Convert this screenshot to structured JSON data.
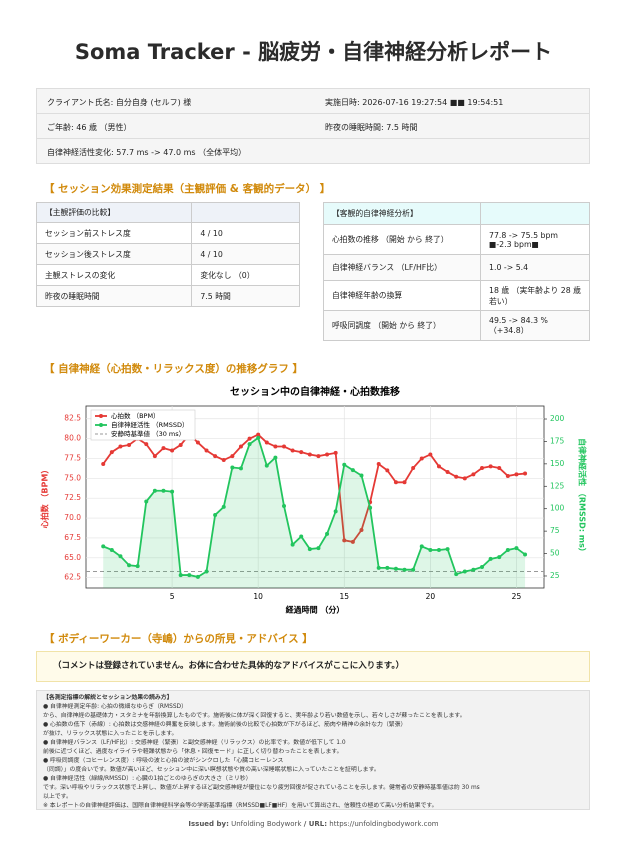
{
  "header": {
    "title": "Soma Tracker - 脳疲労・自律神経分析レポート"
  },
  "client_info": {
    "rows": [
      [
        "クライアント氏名: 自分自身 (セルフ) 様",
        "実施日時: 2026-07-16 19:27:54 ■■ 19:54:51"
      ],
      [
        "ご年齢: 46 歳 （男性）",
        "昨夜の睡眠時間: 7.5 時間"
      ],
      [
        "自律神経活性変化: 57.7 ms -> 47.0 ms （全体平均）"
      ]
    ]
  },
  "section1": {
    "title": "【 セッション効果測定結果（主観評価 & 客観的データ） 】",
    "subjective_table": {
      "header": "【主観評価の比較】",
      "rows": [
        [
          "セッション前ストレス度",
          "4 / 10"
        ],
        [
          "セッション後ストレス度",
          "4 / 10"
        ],
        [
          "主観ストレスの変化",
          "変化なし （0）"
        ],
        [
          "昨夜の睡眠時間",
          "7.5 時間"
        ]
      ]
    },
    "objective_table": {
      "header": "【客観的自律神経分析】",
      "rows": [
        [
          "心拍数の推移 （開始 から 終了）",
          "77.8 -> 75.5 bpm ■-2.3 bpm■"
        ],
        [
          "自律神経バランス （LF/HF比）",
          "1.0 -> 5.4"
        ],
        [
          "自律神経年齢の換算",
          "18 歳 （実年齢より 28 歳若い）"
        ],
        [
          "呼吸同調度 （開始 から 終了）",
          "49.5 -> 84.3 % （+34.8）"
        ]
      ]
    }
  },
  "section2": {
    "title": "【 自律神経（心拍数・リラックス度）の推移グラフ 】"
  },
  "chart_data": {
    "type": "line",
    "title": "セッション中の自律神経・心拍数推移",
    "xlabel": "経過時間 （分）",
    "ylabel": "心拍数 （BPM）",
    "y2label": "自律神経活性 （RMSSD: ms）",
    "x": [
      1,
      1.5,
      2,
      2.5,
      3,
      3.5,
      4,
      4.5,
      5,
      5.5,
      6,
      6.5,
      7,
      7.5,
      8,
      8.5,
      9,
      9.5,
      10,
      10.5,
      11,
      11.5,
      12,
      12.5,
      13,
      13.5,
      14,
      14.5,
      15,
      15.5,
      16,
      16.5,
      17,
      17.5,
      18,
      18.5,
      19,
      19.5,
      20,
      20.5,
      21,
      21.5,
      22,
      22.5,
      23,
      23.5,
      24,
      24.5,
      25,
      25.5
    ],
    "xlim": [
      0,
      26.6
    ],
    "xticks": [
      5,
      10,
      15,
      20,
      25
    ],
    "ylim": [
      61.2,
      84.1
    ],
    "yticks": [
      62.5,
      {
        "value": 65,
        "label": "65.0"
      },
      67.5,
      {
        "value": 70,
        "label": "70.0"
      },
      72.5,
      {
        "value": 75,
        "label": "75.0"
      },
      77.5,
      {
        "value": 80,
        "label": "80.0"
      },
      82.5
    ],
    "y2lim": [
      11.6,
      214.5
    ],
    "y2ticks": [
      25,
      50,
      75,
      100,
      125,
      150,
      175,
      200
    ],
    "grid": true,
    "legend": "upper left",
    "series": [
      {
        "name": "心拍数 （BPM）",
        "color": "#e53935",
        "values": [
          76.8,
          78.3,
          79,
          79.2,
          80,
          79.3,
          77.8,
          78.8,
          78.5,
          79.2,
          80.5,
          79.5,
          78.5,
          77.8,
          77.3,
          77.8,
          79,
          80,
          80.5,
          79.5,
          79,
          79,
          78.5,
          78.3,
          78,
          77.8,
          78,
          78.2,
          67.2,
          67,
          68.5,
          72,
          76.8,
          76,
          74.5,
          74.5,
          76.3,
          77.5,
          78,
          76.5,
          75.8,
          75.2,
          75,
          75.5,
          76.3,
          76.5,
          76.3,
          75.3,
          75.5,
          75.6
        ]
      },
      {
        "name": "自律神経活性 （RMSSD）",
        "color": "#22c55e",
        "axis": "y2",
        "fill": true,
        "values": [
          58,
          54,
          47,
          37,
          36,
          108,
          120,
          120,
          119,
          26,
          26,
          24,
          30,
          93,
          102,
          146,
          145,
          172,
          179,
          148,
          157,
          103,
          60,
          69,
          55,
          56,
          72,
          97,
          149,
          143,
          137,
          101,
          34,
          34,
          33,
          32,
          32,
          58,
          54,
          54,
          55,
          27,
          30,
          32,
          35,
          44,
          46,
          54,
          56,
          49
        ]
      }
    ],
    "reference_line": {
      "name": "安静時基準値 （30 ms）",
      "value": 30,
      "axis": "y2",
      "color": "#999999"
    }
  },
  "section3": {
    "title": "【 ボディーワーカー（寺嶋）からの所見・アドバイス 】",
    "comment": "（コメントは登録されていません。お体に合わせた具体的なアドバイスがここに入ります。）"
  },
  "notes": {
    "lines": [
      "【各測定指標の解説とセッション効果の読み方】",
      "● 自律神経測定年齢: 心拍の微細なゆらぎ（RMSSD）",
      "から、自律神経の基礎体力・スタミナを年齢換算したものです。施術後に体が深く回復すると、実年齢より若い数値を示し、若々しさが蘇ったことを表します。",
      "● 心拍数の低下（赤線）: 心拍数は交感神経の興奮を反映します。施術前後の比較で心拍数が下がるほど、筋肉や精神の余計な力（緊張）",
      "が抜け、リラックス状態に入ったことを示します。",
      "● 自律神経バランス（LF/HF比）: 交感神経（緊張）と副交感神経（リラックス）の比率です。数値が低下して 1.0",
      "前後に近づくほど、過度なイライラや軽躁状態から「休息・回復モード」に正しく切り替わったことを表します。",
      "● 呼吸同調度（コヒーレンス度）: 呼吸の波と心拍の波がシンクロした「心臓コヒーレンス",
      "（同調）」の度合いです。数値が高いほど、セッション中に深い瞑想状態や質の高い深睡眠状態に入っていたことを証明します。",
      "● 自律神経活性（緑線/RMSSD）: 心臓の1拍ごとのゆらぎの大きさ（ミリ秒）",
      "です。深い呼吸やリラックス状態で上昇し、数値が上昇するほど副交感神経が優位になり疲労回復が促されていることを示します。健常者の安静時基準値は約 30 ms",
      "以上です。",
      "※ 本レポートの自律神経評価は、国際自律神経科学会等の学術基準指標（RMSSD■LF■HF）を用いて算出され、信頼性の極めて高い分析結果です。"
    ]
  },
  "footer": {
    "issued_label": "Issued by:",
    "issuer": "Unfolding Bodywork",
    "url_label": "/ URL:",
    "url": "https://unfoldingbodywork.com"
  }
}
